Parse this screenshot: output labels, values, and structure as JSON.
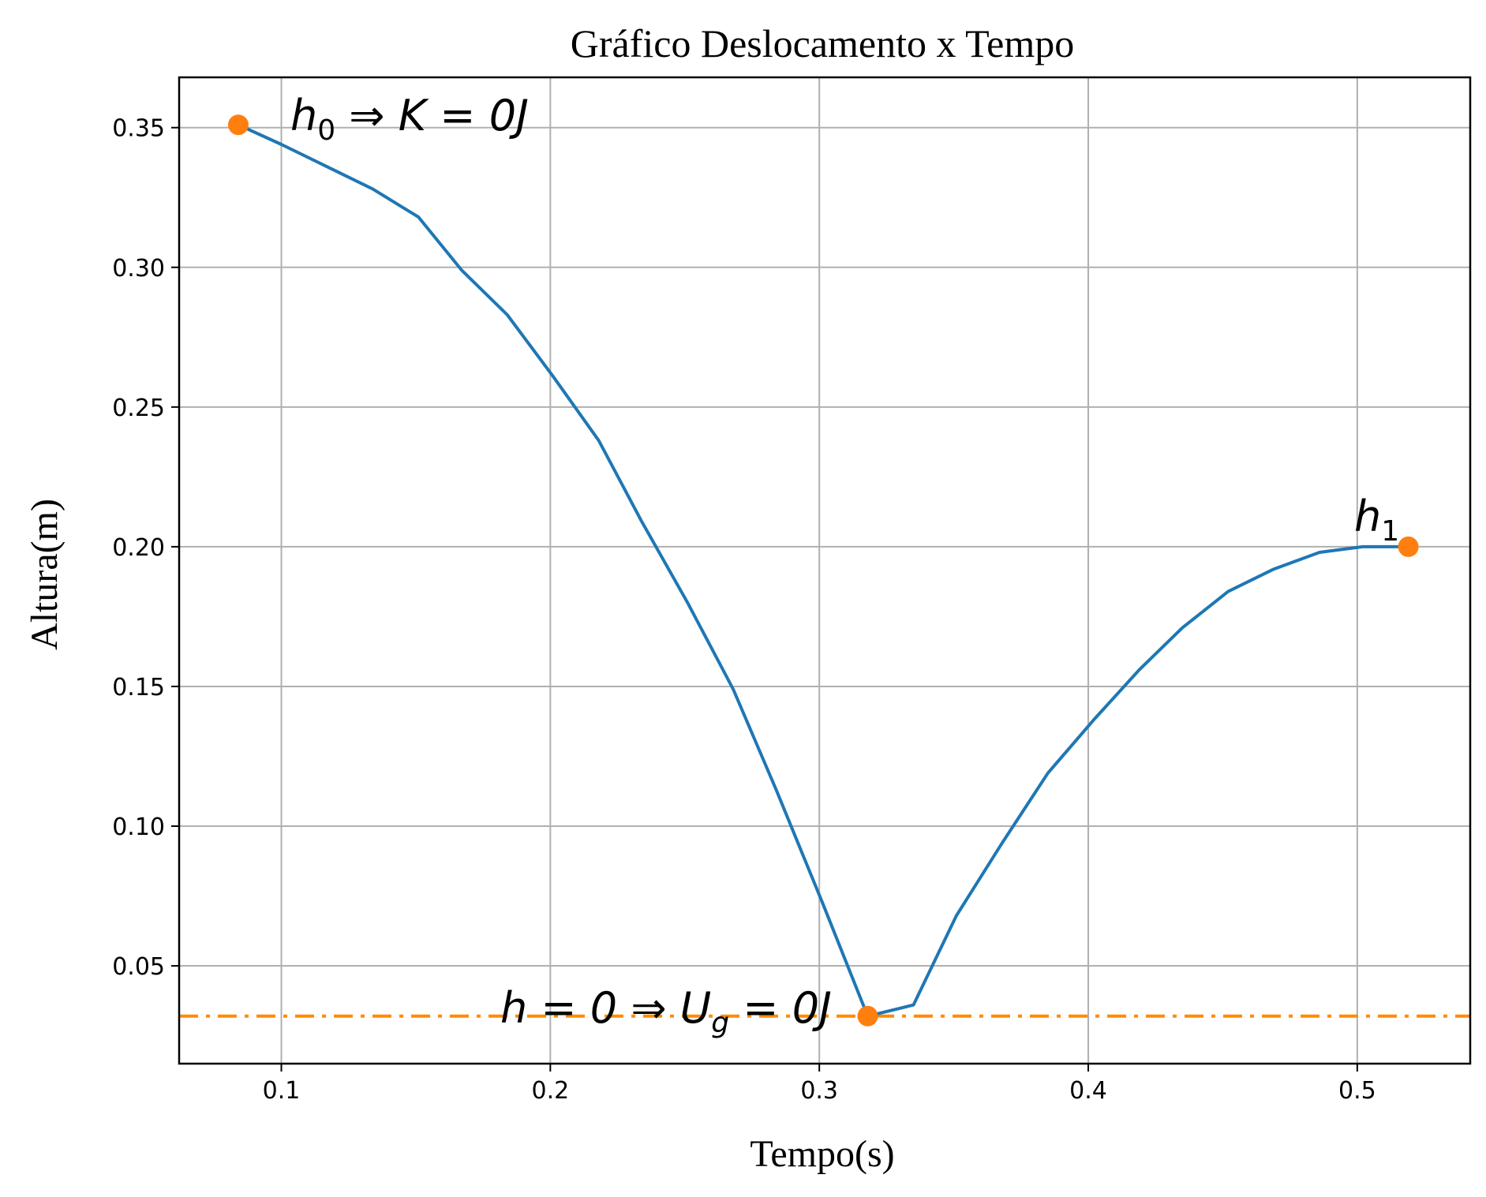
{
  "chart_data": {
    "type": "line",
    "title": "Gráfico Deslocamento x Tempo",
    "xlabel": "Tempo(s)",
    "ylabel": "Altura(m)",
    "xlim": [
      0.062,
      0.542
    ],
    "ylim": [
      0.015,
      0.368
    ],
    "grid": true,
    "xticks": [
      0.1,
      0.2,
      0.3,
      0.4,
      0.5
    ],
    "xtick_labels": [
      "0.1",
      "0.2",
      "0.3",
      "0.4",
      "0.5"
    ],
    "yticks": [
      0.05,
      0.1,
      0.15,
      0.2,
      0.25,
      0.3,
      0.35
    ],
    "ytick_labels": [
      "0.05",
      "0.10",
      "0.15",
      "0.20",
      "0.25",
      "0.30",
      "0.35"
    ],
    "line_color": "#1f77b4",
    "marker_color": "#ff7f0e",
    "hline_color": "#ff8c00",
    "series": [
      {
        "x": [
          0.084,
          0.1,
          0.117,
          0.134,
          0.151,
          0.167,
          0.184,
          0.201,
          0.218,
          0.234,
          0.251,
          0.268,
          0.284,
          0.301,
          0.318,
          0.335,
          0.351,
          0.368,
          0.385,
          0.402,
          0.419,
          0.435,
          0.452,
          0.469,
          0.486,
          0.502,
          0.519
        ],
        "y": [
          0.351,
          0.344,
          0.336,
          0.328,
          0.318,
          0.299,
          0.283,
          0.261,
          0.238,
          0.209,
          0.18,
          0.149,
          0.113,
          0.073,
          0.032,
          0.036,
          0.068,
          0.094,
          0.119,
          0.138,
          0.156,
          0.171,
          0.184,
          0.192,
          0.198,
          0.2,
          0.2
        ]
      }
    ],
    "markers": [
      {
        "x": 0.084,
        "y": 0.351
      },
      {
        "x": 0.318,
        "y": 0.032
      },
      {
        "x": 0.519,
        "y": 0.2
      }
    ],
    "hline": {
      "y": 0.032,
      "style": "dash-dot"
    },
    "annotations": [
      {
        "id": "h0",
        "text_parts": [
          "h",
          "0",
          " ⇒ K = 0J"
        ]
      },
      {
        "id": "hzero",
        "text_parts": [
          "h = 0 ⇒ U",
          "g",
          " = 0J"
        ]
      },
      {
        "id": "h1",
        "text_parts": [
          "h",
          "1"
        ]
      }
    ]
  }
}
